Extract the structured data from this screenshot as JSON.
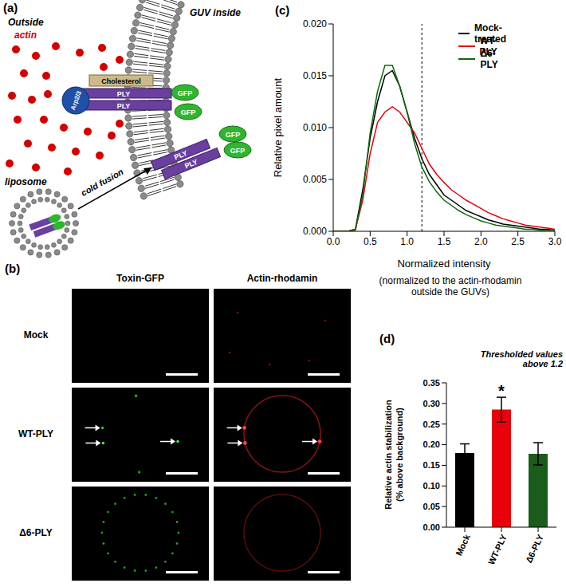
{
  "panels": {
    "a": {
      "label": "(a)",
      "outside": "Outside",
      "actin": "actin",
      "guv_inside": "GUV inside",
      "cholesterol": "Cholesterol",
      "arp": "Arp2/3",
      "ply": "PLY",
      "gfp": "GFP",
      "liposome": "liposome",
      "cold_fusion": "cold fusion"
    },
    "b": {
      "label": "(b)",
      "columns": [
        "Toxin-GFP",
        "Actin-rhodamin"
      ],
      "rows": [
        "Mock",
        "WT-PLY",
        "Δ6-PLY"
      ]
    }
  },
  "chart_data": [
    {
      "type": "line",
      "title": "(c)",
      "x_label": "Normalized intensity",
      "x_label_note": "(normalized to the actin-rhodamin\noutside the GUVs)",
      "y_label": "Relative pixel amount",
      "x": [
        0,
        0.1,
        0.2,
        0.3,
        0.4,
        0.5,
        0.6,
        0.7,
        0.8,
        0.9,
        1,
        1.1,
        1.2,
        1.3,
        1.4,
        1.5,
        1.6,
        1.7,
        1.8,
        1.9,
        2,
        2.1,
        2.2,
        2.3,
        2.4,
        2.5,
        2.6,
        2.7,
        2.8,
        2.9,
        3
      ],
      "series": [
        {
          "name": "Mock-treated",
          "color": "#000000",
          "values": [
            0,
            0,
            0,
            0.0002,
            0.004,
            0.009,
            0.0125,
            0.015,
            0.0155,
            0.014,
            0.0115,
            0.009,
            0.007,
            0.0055,
            0.0045,
            0.0035,
            0.003,
            0.0025,
            0.002,
            0.0017,
            0.0014,
            0.0011,
            0.0009,
            0.0007,
            0.0006,
            0.0005,
            0.0004,
            0.0003,
            0.0002,
            0.0002,
            0.0001
          ]
        },
        {
          "name": "WT-PLY",
          "color": "#e8000b",
          "values": [
            0,
            0,
            0,
            0.0002,
            0.003,
            0.0075,
            0.0105,
            0.0115,
            0.012,
            0.0115,
            0.0105,
            0.0095,
            0.008,
            0.0065,
            0.0055,
            0.0047,
            0.004,
            0.0035,
            0.003,
            0.0026,
            0.0022,
            0.0018,
            0.0015,
            0.0012,
            0.001,
            0.0008,
            0.0006,
            0.0005,
            0.0004,
            0.0003,
            0.0002
          ]
        },
        {
          "name": "Δ6-PLY",
          "color": "#0b6b0b",
          "values": [
            0,
            0,
            0,
            0.0001,
            0.0035,
            0.0095,
            0.0135,
            0.016,
            0.016,
            0.014,
            0.0115,
            0.0085,
            0.0062,
            0.0048,
            0.0038,
            0.003,
            0.0025,
            0.002,
            0.0016,
            0.0013,
            0.001,
            0.0008,
            0.0006,
            0.0005,
            0.0004,
            0.0003,
            0.0002,
            0.0002,
            0.0001,
            0.0001,
            0.0001
          ]
        }
      ],
      "xlim": [
        0,
        3
      ],
      "xticks": [
        {
          "value": 0,
          "label": "0.0"
        },
        {
          "value": 0.5,
          "label": "0.5"
        },
        {
          "value": 1,
          "label": "1.0"
        },
        {
          "value": 1.5,
          "label": "1.5"
        },
        {
          "value": 2,
          "label": "2.0"
        },
        {
          "value": 2.5,
          "label": "2.5"
        },
        {
          "value": 3,
          "label": "3.0"
        }
      ],
      "ylim": [
        0,
        0.02
      ],
      "yticks": [
        {
          "value": 0,
          "label": "0.000"
        },
        {
          "value": 0.005,
          "label": "0.005"
        },
        {
          "value": 0.01,
          "label": "0.010"
        },
        {
          "value": 0.015,
          "label": "0.015"
        },
        {
          "value": 0.02,
          "label": "0.020"
        }
      ],
      "vline": 1.2,
      "legend": "upper right"
    },
    {
      "type": "bar",
      "title": "(d)",
      "annotation": "Thresholded values\nabove 1.2",
      "y_label": "Relative actin stabilization\n(% above background)",
      "categories": [
        "Mock",
        "WT-PLY",
        "Δ6-PLY"
      ],
      "values": [
        0.18,
        0.285,
        0.178
      ],
      "errors": [
        0.022,
        0.03,
        0.027
      ],
      "colors": [
        "#000000",
        "#e8000b",
        "#1a5c1a"
      ],
      "significance": [
        null,
        "*",
        null
      ],
      "ylim": [
        0,
        0.35
      ],
      "yticks": [
        {
          "value": 0,
          "label": "0.00"
        },
        {
          "value": 0.05,
          "label": "0.05"
        },
        {
          "value": 0.1,
          "label": "0.10"
        },
        {
          "value": 0.15,
          "label": "0.15"
        },
        {
          "value": 0.2,
          "label": "0.20"
        },
        {
          "value": 0.25,
          "label": "0.25"
        },
        {
          "value": 0.3,
          "label": "0.30"
        },
        {
          "value": 0.35,
          "label": "0.35"
        }
      ]
    }
  ]
}
